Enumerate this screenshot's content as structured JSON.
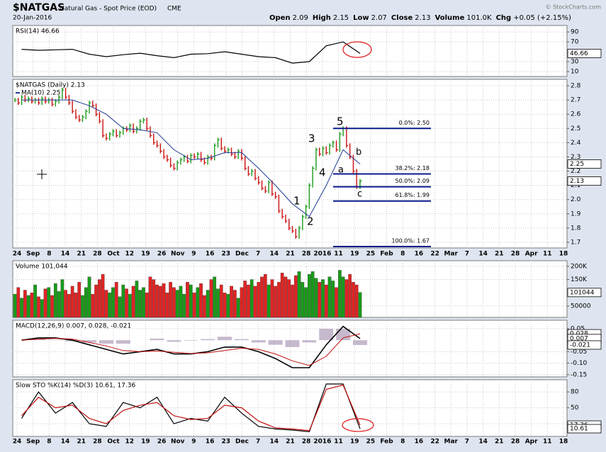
{
  "header": {
    "symbol": "$NATGAS",
    "name": "Natural Gas - Spot Price (EOD)",
    "exchange": "CME",
    "date": "20-Jan-2016",
    "stats": [
      {
        "label": "Open",
        "value": "2.09"
      },
      {
        "label": "High",
        "value": "2.15"
      },
      {
        "label": "Low",
        "value": "2.07"
      },
      {
        "label": "Close",
        "value": "2.13"
      },
      {
        "label": "Volume",
        "value": "101.0K"
      },
      {
        "label": "Chg",
        "value": "+0.05 (+2.15%)"
      }
    ],
    "credit": "© StockCharts.com"
  },
  "x_labels": [
    "24",
    "Sep",
    "8",
    "14",
    "21",
    "28",
    "Oct",
    "12",
    "19",
    "26",
    "Nov",
    "9",
    "16",
    "23",
    "Dec",
    "7",
    "14",
    "21",
    "28",
    "2016",
    "11",
    "19",
    "25",
    "Feb",
    "8",
    "16",
    "22",
    "Mar",
    "7",
    "14",
    "21",
    "28",
    "Apr",
    "11",
    "18"
  ],
  "chart_data": [
    {
      "type": "line",
      "title": "RSI(14) 46.66",
      "color": "#000000",
      "ylim": [
        0,
        103
      ],
      "yticks": [
        10,
        30,
        70,
        90
      ],
      "values": [
        55,
        53,
        54,
        55,
        45,
        40,
        44,
        47,
        42,
        38,
        45,
        46,
        50,
        45,
        40,
        38,
        27,
        30,
        62,
        70,
        46.66
      ],
      "last_values": [
        46.66
      ]
    },
    {
      "type": "ohlc",
      "title": "$NATGAS (Daily) 2.13",
      "legend": "MA(10) 2.25",
      "up_color": "#1a9a1a",
      "down_color": "#cc1010",
      "ma_color": "#1f3a93",
      "ylim": [
        1.66,
        2.845
      ],
      "yticks": [
        2.8,
        2.7,
        2.6,
        2.5,
        2.4,
        2.3,
        2.2,
        2.1,
        {
          "value": 2,
          "label": "2.0"
        },
        1.9,
        1.8,
        1.7
      ],
      "values": [
        2.7,
        2.68,
        2.72,
        2.7,
        2.71,
        2.69,
        2.7,
        2.68,
        2.71,
        2.69,
        2.7,
        2.67,
        2.69,
        2.72,
        2.77,
        2.72,
        2.68,
        2.62,
        2.58,
        2.56,
        2.58,
        2.62,
        2.68,
        2.66,
        2.6,
        2.55,
        2.45,
        2.43,
        2.46,
        2.48,
        2.45,
        2.47,
        2.5,
        2.49,
        2.52,
        2.48,
        2.5,
        2.55,
        2.56,
        2.5,
        2.45,
        2.4,
        2.38,
        2.34,
        2.3,
        2.28,
        2.24,
        2.22,
        2.26,
        2.28,
        2.3,
        2.27,
        2.31,
        2.3,
        2.32,
        2.28,
        2.26,
        2.3,
        2.29,
        2.38,
        2.42,
        2.36,
        2.34,
        2.35,
        2.32,
        2.3,
        2.34,
        2.29,
        2.22,
        2.18,
        2.2,
        2.15,
        2.12,
        2.08,
        2.06,
        2.12,
        2.04,
        2.02,
        1.92,
        1.88,
        1.85,
        1.8,
        1.78,
        1.74,
        1.8,
        1.88,
        1.95,
        2.1,
        2.22,
        2.35,
        2.32,
        2.36,
        2.33,
        2.38,
        2.4,
        2.35,
        2.46,
        2.5,
        2.38,
        2.3,
        2.2,
        2.09,
        2.13
      ],
      "ma_values": [
        2.7,
        2.7,
        2.7,
        2.7,
        2.66,
        2.6,
        2.5,
        2.49,
        2.47,
        2.35,
        2.28,
        2.29,
        2.33,
        2.33,
        2.22,
        2.1,
        1.97,
        1.88,
        2.1,
        2.35,
        2.25
      ],
      "last_values": [
        2.25,
        2.13
      ],
      "fib_color": "#0a1a8c",
      "fib_levels": [
        {
          "value": 2.5,
          "label": "0.0%: 2.50"
        },
        {
          "value": 2.18,
          "label": "38.2%: 2.18"
        },
        {
          "value": 2.09,
          "label": "50.0%: 2.09"
        },
        {
          "value": 1.99,
          "label": "61.8%: 1.99"
        },
        {
          "value": 1.67,
          "label": "100.0%: 1.67"
        }
      ],
      "annotations": [
        {
          "text": "1",
          "color": "#1e7fd6"
        },
        {
          "text": "2",
          "color": "#1e7fd6"
        },
        {
          "text": "3",
          "color": "#1e7fd6"
        },
        {
          "text": "4",
          "color": "#1e7fd6"
        },
        {
          "text": "5",
          "color": "#1e7fd6"
        },
        {
          "text": "a",
          "color": "#d01818"
        },
        {
          "text": "b",
          "color": "#d01818"
        },
        {
          "text": "c",
          "color": "#d01818"
        }
      ]
    },
    {
      "type": "bar",
      "title": "Volume 101,044",
      "up_color": "#1a9a1a",
      "down_color": "#e02424",
      "ylim": [
        7000,
        221000
      ],
      "yticks": [
        {
          "value": 200000,
          "label": "200K"
        },
        {
          "value": 150000,
          "label": "150K"
        },
        50000
      ],
      "values": [
        95000,
        120000,
        80000,
        110000,
        90000,
        100000,
        130000,
        85000,
        75000,
        115000,
        120000,
        90000,
        135000,
        105000,
        150000,
        110000,
        95000,
        125000,
        100000,
        140000,
        90000,
        120000,
        160000,
        95000,
        130000,
        150000,
        170000,
        110000,
        100000,
        120000,
        140000,
        85000,
        130000,
        115000,
        95000,
        125000,
        145000,
        110000,
        120000,
        100000,
        160000,
        150000,
        130000,
        125000,
        135000,
        100000,
        140000,
        120000,
        110000,
        125000,
        95000,
        140000,
        130000,
        100000,
        120000,
        135000,
        90000,
        110000,
        150000,
        160000,
        115000,
        130000,
        100000,
        95000,
        125000,
        110000,
        80000,
        120000,
        145000,
        130000,
        150000,
        125000,
        140000,
        160000,
        170000,
        130000,
        150000,
        125000,
        140000,
        175000,
        160000,
        150000,
        130000,
        165000,
        180000,
        140000,
        120000,
        170000,
        180000,
        155000,
        140000,
        150000,
        130000,
        160000,
        145000,
        120000,
        185000,
        160000,
        150000,
        170000,
        140000,
        130000,
        101044
      ],
      "last_values": [
        101044
      ]
    },
    {
      "type": "macd",
      "title": "MACD(12,26,9) 0.007, 0.028, -0.021",
      "ylim": [
        -0.16,
        0.087
      ],
      "yticks": [
        0.05,
        -0.05,
        {
          "value": -0.1,
          "label": "-0.10"
        },
        -0.15
      ],
      "series": [
        {
          "color": "#000000",
          "values": [
            0.0,
            0.01,
            0.01,
            0.0,
            -0.02,
            -0.04,
            -0.06,
            -0.05,
            -0.04,
            -0.06,
            -0.06,
            -0.05,
            -0.03,
            -0.03,
            -0.05,
            -0.08,
            -0.12,
            -0.12,
            -0.02,
            0.06,
            0.007
          ]
        },
        {
          "color": "#c01010",
          "values": [
            0.0,
            0.005,
            0.008,
            0.005,
            -0.01,
            -0.025,
            -0.045,
            -0.05,
            -0.047,
            -0.053,
            -0.058,
            -0.055,
            -0.045,
            -0.035,
            -0.04,
            -0.06,
            -0.09,
            -0.11,
            -0.07,
            0.01,
            0.028
          ]
        }
      ],
      "histogram": {
        "color": "#b8a8c0",
        "values": [
          0,
          0.005,
          0.002,
          -0.005,
          -0.01,
          -0.015,
          -0.015,
          0,
          0.007,
          -0.007,
          -0.002,
          0.005,
          0.015,
          0.005,
          -0.01,
          -0.02,
          -0.03,
          -0.01,
          0.05,
          0.05,
          -0.021
        ]
      },
      "last_values": [
        0.028,
        0.007,
        -0.021
      ]
    },
    {
      "type": "line",
      "title": "Slow STO %K(14) %D(3) 10.61, 17.36",
      "ylim": [
        -4,
        103
      ],
      "yticks": [
        20,
        50,
        80
      ],
      "series": [
        {
          "color": "#000000",
          "values": [
            30,
            80,
            40,
            60,
            20,
            15,
            60,
            50,
            70,
            20,
            30,
            25,
            70,
            40,
            15,
            10,
            8,
            5,
            95,
            95,
            10.61
          ]
        },
        {
          "color": "#c01010",
          "values": [
            35,
            70,
            50,
            55,
            30,
            20,
            45,
            55,
            60,
            35,
            28,
            30,
            55,
            50,
            25,
            12,
            10,
            7,
            85,
            93,
            17.36
          ]
        }
      ],
      "last_values": [
        17.36,
        10.61
      ]
    }
  ]
}
